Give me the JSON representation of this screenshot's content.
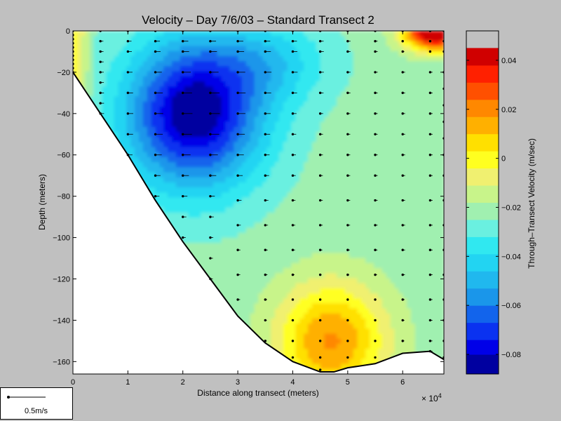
{
  "chart_data": [
    {
      "type": "contour",
      "title": "Velocity – Day 7/6/03 – Standard Transect 2",
      "xlabel": "Distance along transect (meters)",
      "ylabel": "Depth (meters)",
      "x_exponent_label": "× 10",
      "x_exponent_power": "4",
      "xlim": [
        0,
        6.75
      ],
      "ylim": [
        -166,
        0
      ],
      "x_ticks": [
        "0",
        "1",
        "2",
        "3",
        "4",
        "5",
        "6"
      ],
      "y_ticks": [
        "0",
        "−20",
        "−40",
        "−60",
        "−80",
        "−100",
        "−120",
        "−140",
        "−160"
      ],
      "bottom_profile": [
        [
          0,
          -20
        ],
        [
          0.5,
          -40
        ],
        [
          1,
          -60
        ],
        [
          1.5,
          -82
        ],
        [
          2,
          -102
        ],
        [
          2.5,
          -120
        ],
        [
          3,
          -138
        ],
        [
          3.5,
          -151
        ],
        [
          4,
          -160
        ],
        [
          4.5,
          -165
        ],
        [
          4.75,
          -165
        ],
        [
          5,
          -163
        ],
        [
          5.5,
          -161
        ],
        [
          6,
          -156
        ],
        [
          6.5,
          -155
        ],
        [
          6.75,
          -159
        ]
      ],
      "vector_columns": [
        {
          "x": 0,
          "depths": [
            0,
            -2,
            -4,
            -6,
            -8,
            -10,
            -12,
            -14,
            -16,
            -18,
            -20
          ]
        },
        {
          "x": 0.5,
          "depths": [
            0,
            -5,
            -10,
            -15,
            -20,
            -25,
            -30,
            -35,
            -40
          ]
        },
        {
          "x": 1,
          "depths": [
            0,
            -5,
            -10,
            -20,
            -30,
            -40,
            -50,
            -60
          ]
        },
        {
          "x": 1.5,
          "depths": [
            0,
            -5,
            -10,
            -20,
            -30,
            -40,
            -50,
            -60,
            -70,
            -80
          ]
        },
        {
          "x": 2,
          "depths": [
            0,
            -5,
            -10,
            -20,
            -30,
            -40,
            -50,
            -60,
            -70,
            -80,
            -90,
            -100
          ]
        },
        {
          "x": 2.5,
          "depths": [
            0,
            -5,
            -10,
            -20,
            -30,
            -40,
            -50,
            -60,
            -70,
            -80,
            -90,
            -100,
            -110,
            -120
          ]
        },
        {
          "x": 3,
          "depths": [
            0,
            -5,
            -10,
            -20,
            -30,
            -40,
            -50,
            -60,
            -70,
            -82,
            -94,
            -106,
            -118,
            -130
          ]
        },
        {
          "x": 3.5,
          "depths": [
            0,
            -5,
            -10,
            -20,
            -30,
            -40,
            -50,
            -60,
            -70,
            -82,
            -94,
            -106,
            -118,
            -130,
            -140,
            -150
          ]
        },
        {
          "x": 4,
          "depths": [
            0,
            -5,
            -10,
            -20,
            -30,
            -40,
            -50,
            -60,
            -70,
            -82,
            -94,
            -106,
            -118,
            -130,
            -140,
            -150,
            -158
          ]
        },
        {
          "x": 4.5,
          "depths": [
            0,
            -5,
            -10,
            -20,
            -30,
            -40,
            -50,
            -60,
            -70,
            -82,
            -94,
            -106,
            -118,
            -130,
            -140,
            -150,
            -158,
            -164
          ]
        },
        {
          "x": 5,
          "depths": [
            0,
            -5,
            -10,
            -20,
            -30,
            -40,
            -50,
            -60,
            -70,
            -82,
            -94,
            -106,
            -118,
            -130,
            -140,
            -150,
            -158
          ]
        },
        {
          "x": 5.5,
          "depths": [
            0,
            -5,
            -10,
            -20,
            -30,
            -40,
            -50,
            -60,
            -70,
            -82,
            -94,
            -106,
            -118,
            -130,
            -140,
            -150,
            -158
          ]
        },
        {
          "x": 6,
          "depths": [
            0,
            -5,
            -10,
            -20,
            -30,
            -40,
            -50,
            -60,
            -70,
            -82,
            -94,
            -106,
            -118,
            -130,
            -140,
            -150
          ]
        },
        {
          "x": 6.5,
          "depths": [
            0,
            -5,
            -10,
            -20,
            -30,
            -40,
            -50,
            -60,
            -70,
            -82,
            -94,
            -106,
            -118,
            -130,
            -140,
            -150,
            -155
          ]
        },
        {
          "x": 6.75,
          "depths": [
            0,
            -5,
            -10,
            -20,
            -28,
            -36,
            -44,
            -52,
            -60,
            -70,
            -82,
            -94,
            -106,
            -118,
            -130,
            -140,
            -150,
            -158
          ]
        }
      ],
      "vector_legend_label": "0.5m/s"
    },
    {
      "type": "colorbar",
      "label": "Through–Transect Velocity (m/sec)",
      "clim": [
        -0.088,
        0.052
      ],
      "levels": [
        -0.088,
        -0.08,
        -0.074,
        -0.067,
        -0.06,
        -0.053,
        -0.046,
        -0.039,
        -0.032,
        -0.025,
        -0.018,
        -0.011,
        -0.004,
        0.003,
        0.01,
        0.017,
        0.024,
        0.031,
        0.038,
        0.045,
        0.052
      ],
      "colors": [
        "#0000a0",
        "#0000e8",
        "#0a32f0",
        "#1264ec",
        "#1a96ea",
        "#20b8ee",
        "#22d4f2",
        "#30e8f0",
        "#6af0e0",
        "#a0f0b0",
        "#c8f48a",
        "#f0f070",
        "#ffff20",
        "#ffe000",
        "#ffb000",
        "#ff8800",
        "#ff5000",
        "#ff2000",
        "#d00000"
      ],
      "ticks": [
        {
          "value": 0.04,
          "label": "0.04"
        },
        {
          "value": 0.02,
          "label": "0.02"
        },
        {
          "value": 0,
          "label": "0"
        },
        {
          "value": -0.02,
          "label": "−0.02"
        },
        {
          "value": -0.04,
          "label": "−0.04"
        },
        {
          "value": -0.06,
          "label": "−0.06"
        },
        {
          "value": -0.08,
          "label": "−0.08"
        }
      ]
    }
  ]
}
